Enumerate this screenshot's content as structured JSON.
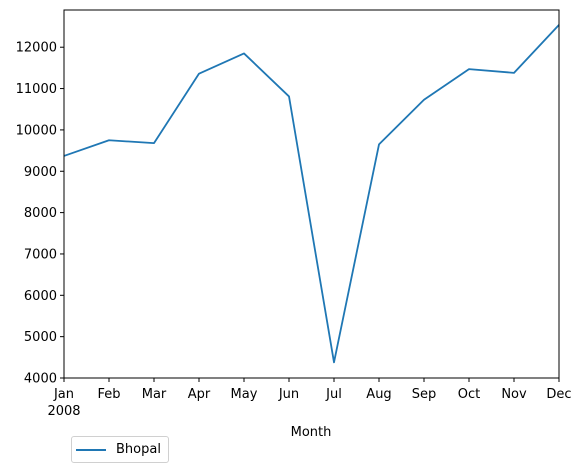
{
  "chart_data": {
    "type": "line",
    "title": "",
    "xlabel": "Month",
    "ylabel": "",
    "categories": [
      "Jan",
      "Feb",
      "Mar",
      "Apr",
      "May",
      "Jun",
      "Jul",
      "Aug",
      "Sep",
      "Oct",
      "Nov",
      "Dec"
    ],
    "year_label": "2008",
    "series": [
      {
        "name": "Bhopal",
        "color": "#1f77b4",
        "values": [
          9370,
          9750,
          9680,
          11360,
          11850,
          10810,
          4380,
          9650,
          10730,
          11470,
          11380,
          12540
        ]
      }
    ],
    "ylim": [
      4000,
      12900
    ],
    "yticks": [
      4000,
      5000,
      6000,
      7000,
      8000,
      9000,
      10000,
      11000,
      12000
    ],
    "grid": false,
    "legend_position": "bottom-left outside"
  }
}
